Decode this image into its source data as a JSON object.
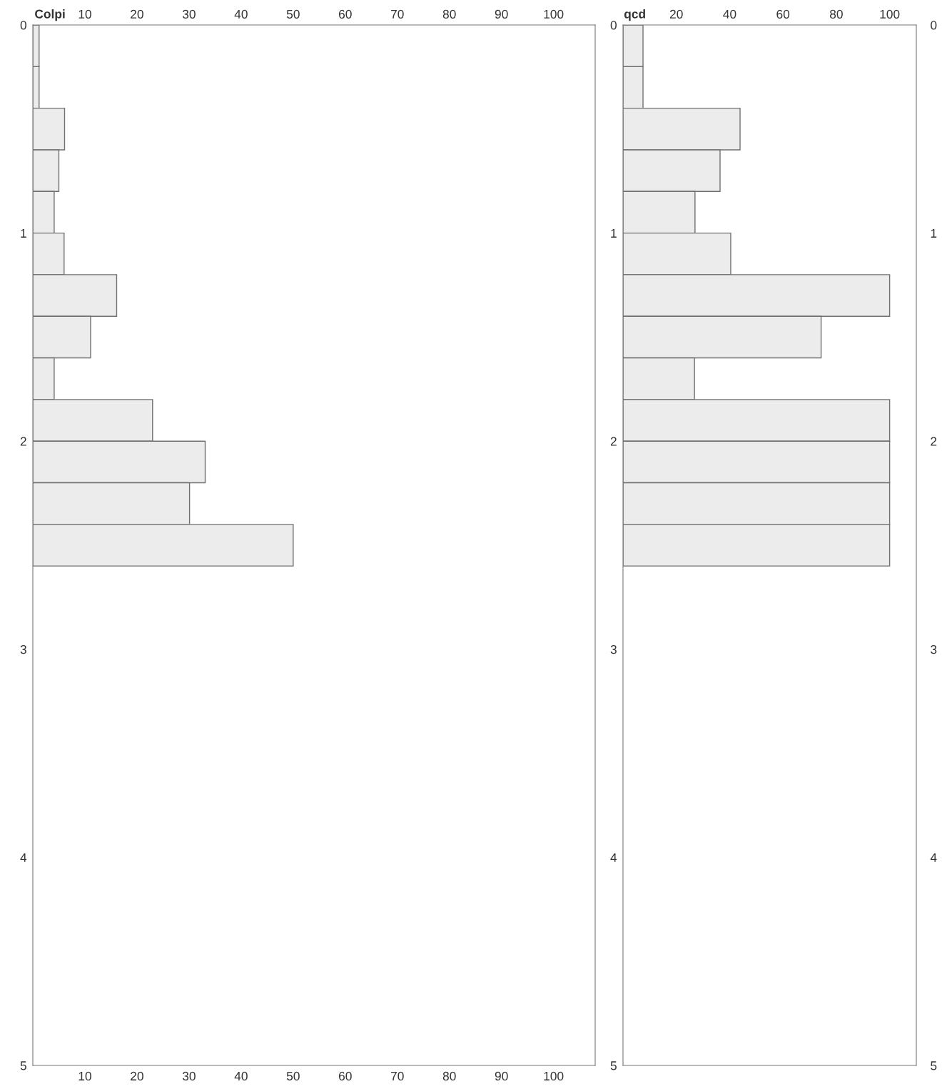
{
  "chart_data": [
    {
      "type": "histogram",
      "orientation": "horizontal",
      "title": "Colpi",
      "bins": [
        0,
        0.2,
        0.4,
        0.6,
        0.8,
        1.0,
        1.2,
        1.4,
        1.6,
        1.8,
        2.0,
        2.2,
        2.4,
        2.6
      ],
      "values": [
        1.2,
        1.2,
        6.1,
        5.0,
        4.1,
        6.0,
        16.1,
        11.1,
        4.1,
        23.0,
        33.1,
        30.1,
        50.0
      ],
      "color": "#ececec",
      "xlim": [
        0,
        108
      ],
      "xticks": [
        10,
        20,
        30,
        40,
        50,
        60,
        70,
        80,
        90,
        100
      ],
      "x2lim": [
        0,
        108
      ],
      "x2ticks": [
        10,
        20,
        30,
        40,
        50,
        60,
        70,
        80,
        90,
        100
      ],
      "ylim": [
        5,
        0
      ],
      "yticks": [
        0,
        1,
        2,
        3,
        4,
        5
      ],
      "grid": false
    },
    {
      "type": "histogram",
      "orientation": "horizontal",
      "title": "qcd",
      "bins": [
        0,
        0.2,
        0.4,
        0.6,
        0.8,
        1.0,
        1.2,
        1.4,
        1.6,
        1.8,
        2.0,
        2.2,
        2.4,
        2.6
      ],
      "values": [
        7.5,
        7.5,
        43.9,
        36.4,
        27.0,
        40.4,
        100,
        74.3,
        26.8,
        100,
        100,
        100,
        100
      ],
      "color": "#ececec",
      "xlim": [
        0,
        110
      ],
      "xticks": [
        20,
        40,
        60,
        80,
        100
      ],
      "ylim": [
        5,
        0
      ],
      "yticks": [
        0,
        1,
        2,
        3,
        4,
        5
      ],
      "y2lim": [
        5,
        0
      ],
      "y2ticks": [
        0,
        1,
        2,
        3,
        4,
        5
      ],
      "grid": false
    }
  ]
}
